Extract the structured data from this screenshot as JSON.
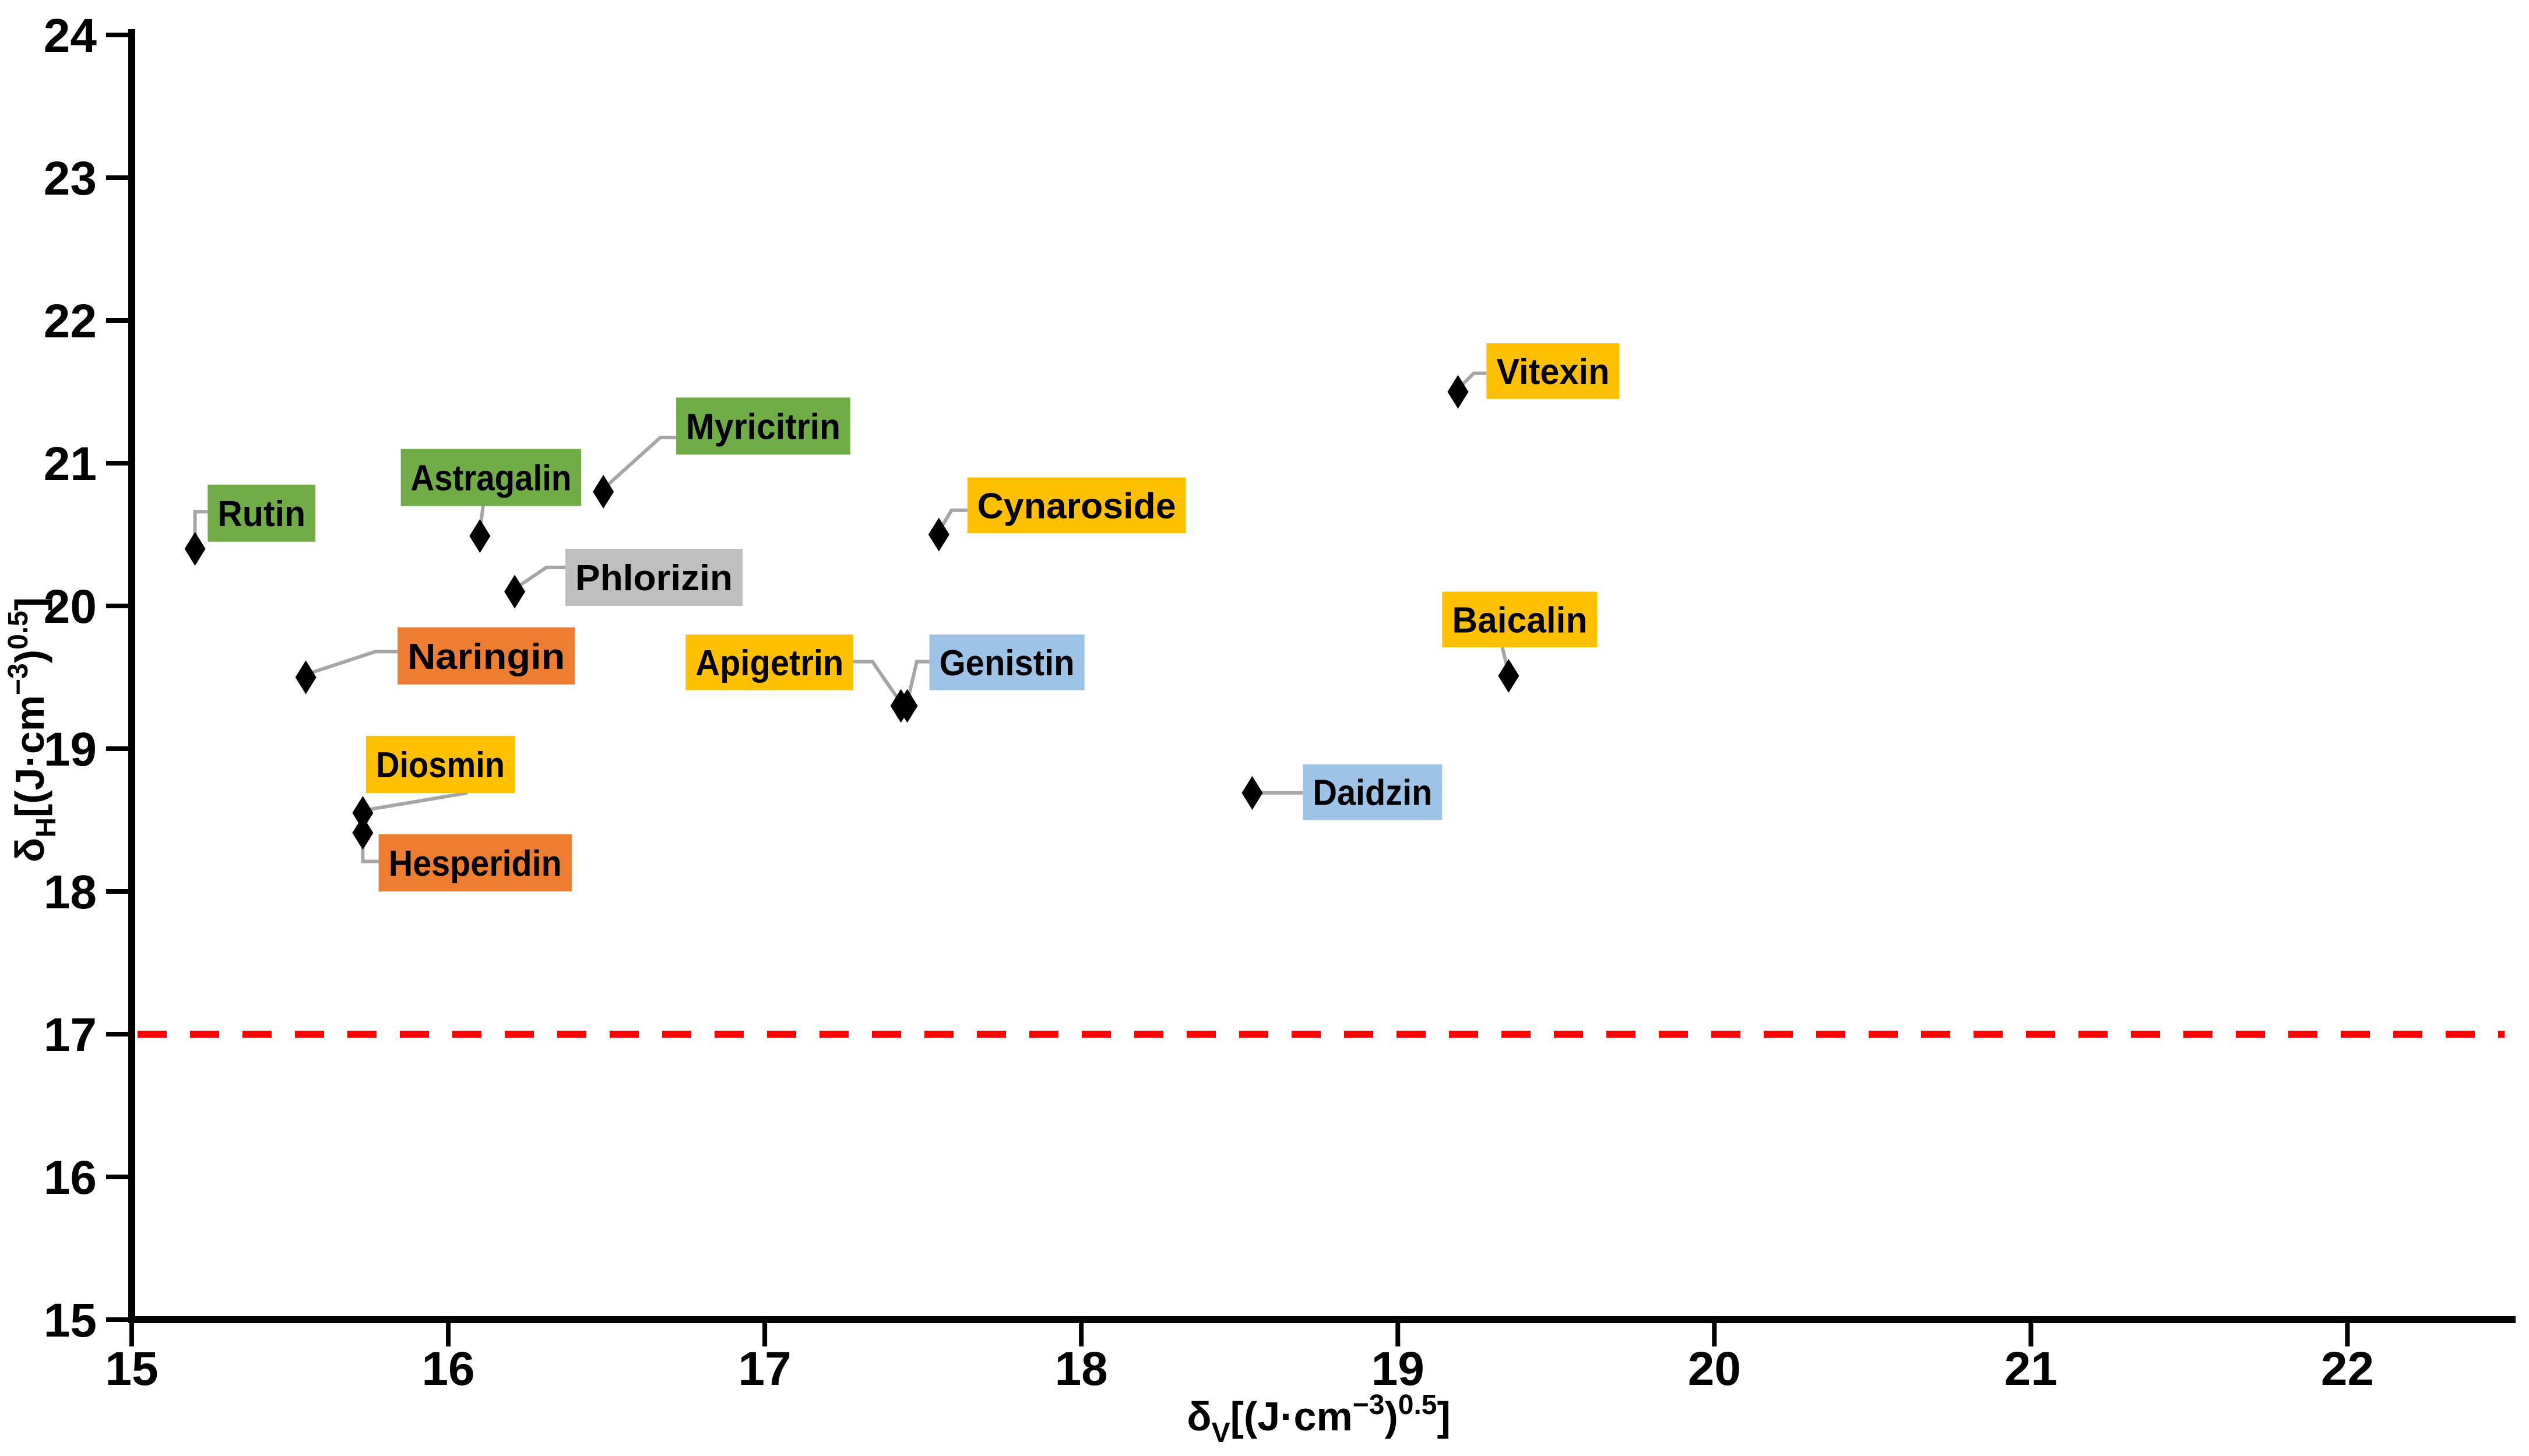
{
  "chart_data": {
    "type": "scatter",
    "title": "",
    "xlabel_plain": "δV[(J·cm−3)0.5]",
    "ylabel_plain": "δH[(J·cm−3)0.5]",
    "xlabel_parts": [
      {
        "t": "δ",
        "k": "n"
      },
      {
        "t": "V",
        "k": "sub"
      },
      {
        "t": "[(J·cm",
        "k": "n"
      },
      {
        "t": "−3",
        "k": "sup"
      },
      {
        "t": ")",
        "k": "n"
      },
      {
        "t": "0.5",
        "k": "sup"
      },
      {
        "t": "]",
        "k": "n"
      }
    ],
    "ylabel_parts": [
      {
        "t": "δ",
        "k": "n"
      },
      {
        "t": "H",
        "k": "sub"
      },
      {
        "t": "[(J·cm",
        "k": "n"
      },
      {
        "t": "−3",
        "k": "sup"
      },
      {
        "t": ")",
        "k": "n"
      },
      {
        "t": "0.5",
        "k": "sup"
      },
      {
        "t": "]",
        "k": "n"
      }
    ],
    "xlim": [
      15,
      22.5
    ],
    "ylim": [
      15,
      24
    ],
    "xticks": [
      15,
      16,
      17,
      18,
      19,
      20,
      21,
      22
    ],
    "yticks": [
      15,
      16,
      17,
      18,
      19,
      20,
      21,
      22,
      23,
      24
    ],
    "grid": false,
    "threshold_line": {
      "y": 17,
      "color": "#FF0000",
      "style": "dashed"
    },
    "marker": {
      "shape": "diamond",
      "color": "#000000"
    },
    "leader_color": "#A6A6A6",
    "axis_color": "#000000",
    "label_text_color": "#1a1a1a",
    "palette": {
      "green": "#70AD47",
      "orange": "#ED7D31",
      "yellow": "#FFC000",
      "gray": "#BFBFBF",
      "blue": "#9DC3E6"
    },
    "points": [
      {
        "name": "Rutin",
        "x": 15.2,
        "y": 20.4,
        "color": "#70AD47",
        "box": {
          "x1": 15.24,
          "x2": 15.58,
          "y1": 20.45,
          "y2": 20.85
        },
        "leader": [
          [
            15.2,
            20.43
          ],
          [
            15.2,
            20.66
          ],
          [
            15.24,
            20.66
          ]
        ]
      },
      {
        "name": "Naringin",
        "x": 15.55,
        "y": 19.5,
        "color": "#ED7D31",
        "box": {
          "x1": 15.84,
          "x2": 16.4,
          "y1": 19.45,
          "y2": 19.85
        },
        "leader": [
          [
            15.55,
            19.52
          ],
          [
            15.77,
            19.68
          ],
          [
            15.84,
            19.68
          ]
        ]
      },
      {
        "name": "Astragalin",
        "x": 16.1,
        "y": 20.49,
        "color": "#70AD47",
        "box": {
          "x1": 15.85,
          "x2": 16.42,
          "y1": 20.7,
          "y2": 21.1
        },
        "leader": [
          [
            16.1,
            20.52
          ],
          [
            16.11,
            20.7
          ]
        ]
      },
      {
        "name": "Phlorizin",
        "x": 16.21,
        "y": 20.1,
        "color": "#BFBFBF",
        "box": {
          "x1": 16.37,
          "x2": 16.93,
          "y1": 20.0,
          "y2": 20.4
        },
        "leader": [
          [
            16.21,
            20.12
          ],
          [
            16.31,
            20.27
          ],
          [
            16.37,
            20.27
          ]
        ]
      },
      {
        "name": "Myricitrin",
        "x": 16.49,
        "y": 20.8,
        "color": "#70AD47",
        "box": {
          "x1": 16.72,
          "x2": 17.27,
          "y1": 21.06,
          "y2": 21.46
        },
        "leader": [
          [
            16.49,
            20.82
          ],
          [
            16.67,
            21.18
          ],
          [
            16.72,
            21.18
          ]
        ]
      },
      {
        "name": "Diosmin",
        "x": 15.73,
        "y": 18.55,
        "color": "#FFC000",
        "box": {
          "x1": 15.74,
          "x2": 16.21,
          "y1": 18.69,
          "y2": 19.09
        },
        "leader": [
          [
            15.74,
            18.57
          ],
          [
            16.06,
            18.69
          ]
        ]
      },
      {
        "name": "Hesperidin",
        "x": 15.73,
        "y": 18.41,
        "color": "#ED7D31",
        "box": {
          "x1": 15.78,
          "x2": 16.39,
          "y1": 18.0,
          "y2": 18.4
        },
        "leader": [
          [
            15.73,
            18.39
          ],
          [
            15.73,
            18.21
          ],
          [
            15.78,
            18.21
          ]
        ]
      },
      {
        "name": "Apigetrin",
        "x": 17.43,
        "y": 19.3,
        "color": "#FFC000",
        "box": {
          "x1": 16.75,
          "x2": 17.28,
          "y1": 19.41,
          "y2": 19.8
        },
        "leader": [
          [
            17.28,
            19.61
          ],
          [
            17.34,
            19.61
          ],
          [
            17.43,
            19.32
          ]
        ]
      },
      {
        "name": "Genistin",
        "x": 17.45,
        "y": 19.3,
        "color": "#9DC3E6",
        "box": {
          "x1": 17.52,
          "x2": 18.01,
          "y1": 19.41,
          "y2": 19.8
        },
        "leader": [
          [
            17.52,
            19.61
          ],
          [
            17.48,
            19.61
          ],
          [
            17.45,
            19.32
          ]
        ]
      },
      {
        "name": "Cynaroside",
        "x": 17.55,
        "y": 20.5,
        "color": "#FFC000",
        "box": {
          "x1": 17.64,
          "x2": 18.33,
          "y1": 20.51,
          "y2": 20.9
        },
        "leader": [
          [
            17.55,
            20.52
          ],
          [
            17.59,
            20.67
          ],
          [
            17.64,
            20.67
          ]
        ]
      },
      {
        "name": "Daidzin",
        "x": 18.54,
        "y": 18.69,
        "color": "#9DC3E6",
        "box": {
          "x1": 18.7,
          "x2": 19.14,
          "y1": 18.5,
          "y2": 18.89
        },
        "leader": [
          [
            18.55,
            18.69
          ],
          [
            18.7,
            18.69
          ]
        ]
      },
      {
        "name": "Vitexin",
        "x": 19.19,
        "y": 21.5,
        "color": "#FFC000",
        "box": {
          "x1": 19.28,
          "x2": 19.7,
          "y1": 21.45,
          "y2": 21.84
        },
        "leader": [
          [
            19.19,
            21.52
          ],
          [
            19.24,
            21.63
          ],
          [
            19.28,
            21.63
          ]
        ]
      },
      {
        "name": "Baicalin",
        "x": 19.35,
        "y": 19.51,
        "color": "#FFC000",
        "box": {
          "x1": 19.14,
          "x2": 19.63,
          "y1": 19.71,
          "y2": 20.1
        },
        "leader": [
          [
            19.35,
            19.53
          ],
          [
            19.33,
            19.71
          ]
        ]
      }
    ]
  }
}
